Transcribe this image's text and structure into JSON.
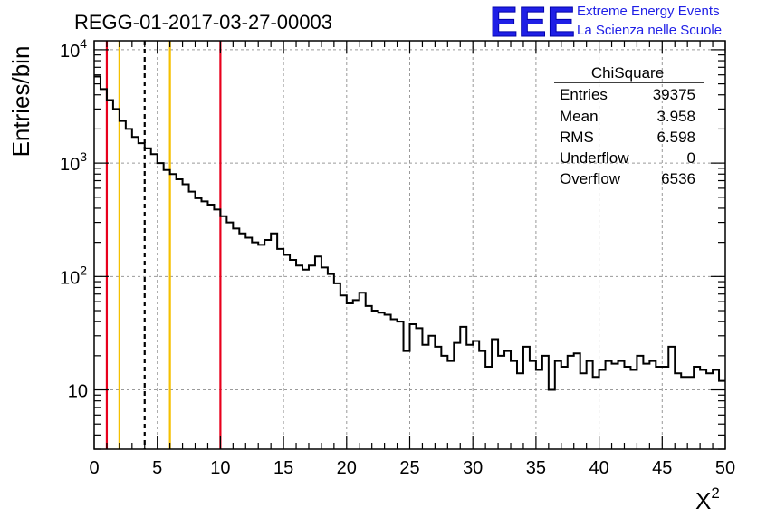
{
  "chart_data": {
    "type": "histogram",
    "title": "REGG-01-2017-03-27-00003",
    "xlabel": "X",
    "xlabel_superscript": "2",
    "ylabel": "Entries/bin",
    "xlim": [
      0,
      50
    ],
    "ylim": [
      3,
      12000
    ],
    "yscale": "log",
    "grid": true,
    "bin_width": 0.5,
    "x_ticks": [
      "0",
      "5",
      "10",
      "15",
      "20",
      "25",
      "30",
      "35",
      "40",
      "45",
      "50"
    ],
    "y_ticks": [
      {
        "base": "10",
        "exp": "4",
        "value": 10000
      },
      {
        "base": "10",
        "exp": "3",
        "value": 1000
      },
      {
        "base": "10",
        "exp": "2",
        "value": 100
      },
      {
        "base": "10",
        "exp": "",
        "value": 10
      }
    ],
    "values": [
      5800,
      4500,
      3600,
      3000,
      2350,
      2000,
      1700,
      1500,
      1350,
      1200,
      1000,
      870,
      800,
      720,
      650,
      560,
      490,
      460,
      430,
      390,
      340,
      300,
      265,
      240,
      220,
      200,
      190,
      210,
      240,
      175,
      155,
      140,
      125,
      115,
      125,
      150,
      120,
      105,
      87,
      68,
      58,
      62,
      72,
      55,
      50,
      48,
      46,
      42,
      40,
      22,
      38,
      35,
      25,
      30,
      24,
      20,
      18,
      26,
      36,
      25,
      27,
      22,
      16,
      28,
      20,
      22,
      18,
      14,
      24,
      18,
      15,
      20,
      10,
      18,
      16,
      20,
      21,
      14,
      18,
      13,
      15,
      18,
      17,
      18,
      16,
      15,
      20,
      17,
      18,
      16,
      16,
      24,
      14,
      13,
      13,
      16,
      15,
      14,
      15,
      12
    ],
    "vertical_lines": [
      {
        "x": 1,
        "color": "#e8001c",
        "style": "solid"
      },
      {
        "x": 2,
        "color": "#f5c000",
        "style": "solid"
      },
      {
        "x": 4,
        "color": "#000000",
        "style": "dashed"
      },
      {
        "x": 6,
        "color": "#f5c000",
        "style": "solid"
      },
      {
        "x": 10,
        "color": "#e8001c",
        "style": "solid"
      }
    ]
  },
  "stats_box": {
    "title": "ChiSquare",
    "rows": [
      {
        "label": "Entries",
        "value": "39375"
      },
      {
        "label": "Mean",
        "value": "3.958"
      },
      {
        "label": "RMS",
        "value": "6.598"
      },
      {
        "label": "Underflow",
        "value": "0"
      },
      {
        "label": "Overflow",
        "value": "6536"
      }
    ]
  },
  "logo": {
    "mark": "EEE",
    "line1": "Extreme Energy Events",
    "line2": "La Scienza nelle Scuole"
  }
}
